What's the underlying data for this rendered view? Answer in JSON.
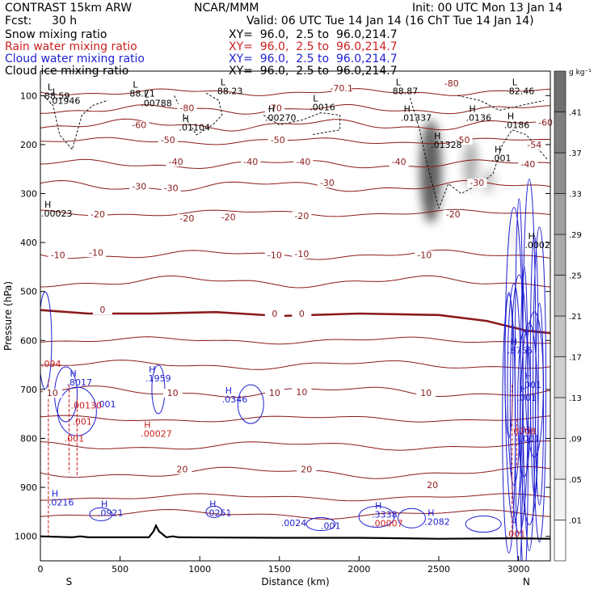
{
  "header": {
    "model": "CONTRAST 15km ARW",
    "center": "NCAR/MMM",
    "init": "Init: 00 UTC Mon 13 Jan 14",
    "fcst_label": "Fcst:",
    "fcst_value": "30 h",
    "valid": "Valid: 06 UTC Tue 14 Jan 14 (16 ChT Tue 14 Jan 14)",
    "fields": [
      {
        "name": "Snow mixing ratio",
        "xy": "XY=  96.0,  2.5 to  96.0,214.7",
        "color": "#000000"
      },
      {
        "name": "Rain water mixing ratio",
        "xy": "XY=  96.0,  2.5 to  96.0,214.7",
        "color": "#cc1f1f"
      },
      {
        "name": "Cloud water mixing ratio",
        "xy": "XY=  96.0,  2.5 to  96.0,214.7",
        "color": "#1f1fd0"
      },
      {
        "name": "Cloud ice mixing ratio",
        "xy": "XY=  96.0,  2.5 to  96.0,214.7",
        "color": "#000000"
      }
    ]
  },
  "colors": {
    "isotherm": "#8b1a1a",
    "rain": "#cc1f1f",
    "cloud_water": "#1f1fd0",
    "cloud_ice": "#000000",
    "terrain": "#000000"
  },
  "chart_data": {
    "type": "contour-cross-section",
    "xlabel": "Distance (km)",
    "ylabel": "Pressure (hPa)",
    "xlim": [
      0,
      3200
    ],
    "ylim": [
      1050,
      50
    ],
    "x_ticks": [
      0,
      500,
      1000,
      1500,
      2000,
      2500,
      3000
    ],
    "y_ticks": [
      100,
      200,
      300,
      400,
      500,
      600,
      700,
      800,
      900,
      1000
    ],
    "x_end_labels": {
      "left": "S",
      "right": "N"
    },
    "colorbar": {
      "unit": "g kg⁻¹",
      "levels": [
        ".01",
        ".05",
        ".09",
        ".13",
        ".17",
        ".21",
        ".25",
        ".29",
        ".33",
        ".37",
        ".41"
      ],
      "shades": [
        "#ffffff",
        "#f3f3f3",
        "#e7e7e7",
        "#dbdbdb",
        "#cfcfcf",
        "#c3c3c3",
        "#b7b7b7",
        "#ababab",
        "#9f9f9f",
        "#8f8f8f",
        "#7f7f7f",
        "#6f6f6f"
      ]
    },
    "temperature_contours": [
      {
        "label": "-70.1",
        "x": 1890,
        "p": 90
      },
      {
        "label": "-80",
        "x": 2580,
        "p": 80
      },
      {
        "label": "-80",
        "x": 920,
        "p": 130
      },
      {
        "label": "-70",
        "x": 1470,
        "p": 130
      },
      {
        "label": "-60",
        "x": 620,
        "p": 165
      },
      {
        "label": "-60",
        "x": 3170,
        "p": 160
      },
      {
        "label": "-50",
        "x": 800,
        "p": 195
      },
      {
        "label": "-50",
        "x": 1490,
        "p": 195
      },
      {
        "label": "-50",
        "x": 2650,
        "p": 195
      },
      {
        "label": "-54",
        "x": 3100,
        "p": 205
      },
      {
        "label": "-40",
        "x": 850,
        "p": 240
      },
      {
        "label": "-40",
        "x": 1320,
        "p": 240
      },
      {
        "label": "-40",
        "x": 1650,
        "p": 240
      },
      {
        "label": "-40",
        "x": 2250,
        "p": 240
      },
      {
        "label": "-40",
        "x": 3060,
        "p": 245
      },
      {
        "label": "-30",
        "x": 620,
        "p": 290
      },
      {
        "label": "-30",
        "x": 820,
        "p": 293
      },
      {
        "label": "-30",
        "x": 1800,
        "p": 283
      },
      {
        "label": "-30",
        "x": 2740,
        "p": 283
      },
      {
        "label": "-20",
        "x": 360,
        "p": 347
      },
      {
        "label": "-20",
        "x": 920,
        "p": 355
      },
      {
        "label": "-20",
        "x": 1180,
        "p": 353
      },
      {
        "label": "-20",
        "x": 1640,
        "p": 350
      },
      {
        "label": "-20",
        "x": 2590,
        "p": 347
      },
      {
        "label": "-10",
        "x": 110,
        "p": 430
      },
      {
        "label": "-10",
        "x": 350,
        "p": 425
      },
      {
        "label": "-10",
        "x": 1470,
        "p": 430
      },
      {
        "label": "-10",
        "x": 1640,
        "p": 428
      },
      {
        "label": "-10",
        "x": 2410,
        "p": 430
      },
      {
        "label": "0",
        "x": 390,
        "p": 542
      },
      {
        "label": "0",
        "x": 1470,
        "p": 550
      },
      {
        "label": "0",
        "x": 1640,
        "p": 550
      },
      {
        "label": "10",
        "x": 75,
        "p": 712
      },
      {
        "label": "10",
        "x": 830,
        "p": 712
      },
      {
        "label": "10",
        "x": 1470,
        "p": 712
      },
      {
        "label": "10",
        "x": 1640,
        "p": 710
      },
      {
        "label": "10",
        "x": 2420,
        "p": 712
      },
      {
        "label": "20",
        "x": 890,
        "p": 868
      },
      {
        "label": "20",
        "x": 1670,
        "p": 868
      },
      {
        "label": "20",
        "x": 2460,
        "p": 900
      }
    ],
    "extrema": [
      {
        "mark": "L",
        "label": "88.59",
        "x": 25,
        "p": 105,
        "field": "ice"
      },
      {
        "mark": "L",
        "label": ".01946",
        "x": 55,
        "p": 115,
        "field": "ice"
      },
      {
        "mark": "L",
        "label": "88.71",
        "x": 560,
        "p": 100,
        "field": "ice"
      },
      {
        "mark": "L",
        "label": ".00788",
        "x": 630,
        "p": 120,
        "field": "ice"
      },
      {
        "mark": "L",
        "label": "88.23",
        "x": 1110,
        "p": 95,
        "field": "ice"
      },
      {
        "mark": "L",
        "label": ".0016",
        "x": 1690,
        "p": 128,
        "field": "ice"
      },
      {
        "mark": "L",
        "label": "88.87",
        "x": 2210,
        "p": 95,
        "field": "ice"
      },
      {
        "mark": "L",
        "label": "82.46",
        "x": 2940,
        "p": 95,
        "field": "ice"
      },
      {
        "mark": "H",
        "label": ".01104",
        "x": 870,
        "p": 170,
        "field": "ice"
      },
      {
        "mark": "H",
        "label": ".00270",
        "x": 1410,
        "p": 150,
        "field": "ice"
      },
      {
        "mark": "H",
        "label": ".01337",
        "x": 2260,
        "p": 150,
        "field": "ice"
      },
      {
        "mark": "H",
        "label": ".0136",
        "x": 2670,
        "p": 150,
        "field": "ice"
      },
      {
        "mark": "H",
        "label": ".0186",
        "x": 2910,
        "p": 165,
        "field": "ice"
      },
      {
        "mark": "H",
        "label": ".01328",
        "x": 2450,
        "p": 205,
        "field": "ice"
      },
      {
        "mark": "H",
        "label": ".001",
        "x": 2830,
        "p": 232,
        "field": "ice"
      },
      {
        "mark": "H",
        "label": ".00023",
        "x": 5,
        "p": 345,
        "field": "ice"
      },
      {
        "mark": "H",
        "label": ".0002",
        "x": 3040,
        "p": 410,
        "field": "ice"
      },
      {
        "mark": "H",
        "label": ".8755",
        "x": 2930,
        "p": 625,
        "field": "water"
      },
      {
        "mark": "H",
        "label": ".001",
        "x": 3020,
        "p": 695,
        "field": "water"
      },
      {
        "mark": "H",
        "label": ".001",
        "x": 2990,
        "p": 722,
        "field": "water"
      },
      {
        "mark": "H",
        "label": ".001",
        "x": 3010,
        "p": 805,
        "field": "water"
      },
      {
        "mark": "",
        "label": ".094",
        "x": 5,
        "p": 652,
        "field": "rain"
      },
      {
        "mark": "H",
        "label": ".8017",
        "x": 165,
        "p": 690,
        "field": "water"
      },
      {
        "mark": "H",
        "label": ".1959",
        "x": 660,
        "p": 682,
        "field": "water"
      },
      {
        "mark": "H",
        "label": ".0346",
        "x": 1140,
        "p": 725,
        "field": "water"
      },
      {
        "mark": "",
        "label": ".001",
        "x": 350,
        "p": 735,
        "field": "water"
      },
      {
        "mark": "",
        "label": ".00130",
        "x": 190,
        "p": 737,
        "field": "rain"
      },
      {
        "mark": "",
        "label": ".001",
        "x": 200,
        "p": 770,
        "field": "rain"
      },
      {
        "mark": "",
        "label": ".001",
        "x": 150,
        "p": 805,
        "field": "rain"
      },
      {
        "mark": "H",
        "label": ".00027",
        "x": 630,
        "p": 795,
        "field": "rain"
      },
      {
        "mark": "",
        "label": ".0708",
        "x": 2950,
        "p": 790,
        "field": "rain"
      },
      {
        "mark": "H",
        "label": ".0216",
        "x": 50,
        "p": 935,
        "field": "water"
      },
      {
        "mark": "H",
        "label": ".0921",
        "x": 360,
        "p": 957,
        "field": "water"
      },
      {
        "mark": "H",
        "label": ".0251",
        "x": 1040,
        "p": 957,
        "field": "water"
      },
      {
        "mark": "",
        "label": ".0024",
        "x": 1510,
        "p": 977,
        "field": "water"
      },
      {
        "mark": "",
        "label": ".001",
        "x": 1760,
        "p": 983,
        "field": "water"
      },
      {
        "mark": "H",
        "label": ".3338",
        "x": 2080,
        "p": 960,
        "field": "water"
      },
      {
        "mark": "",
        "label": ".00007",
        "x": 2080,
        "p": 978,
        "field": "rain"
      },
      {
        "mark": "H",
        "label": ".2082",
        "x": 2410,
        "p": 975,
        "field": "water"
      },
      {
        "mark": "",
        "label": ".001",
        "x": 2920,
        "p": 1000,
        "field": "rain"
      }
    ],
    "freezing_level_p": [
      [
        0,
        538
      ],
      [
        300,
        545
      ],
      [
        700,
        545
      ],
      [
        1100,
        542
      ],
      [
        1500,
        550
      ],
      [
        2000,
        545
      ],
      [
        2500,
        548
      ],
      [
        2800,
        560
      ],
      [
        3050,
        580
      ],
      [
        3200,
        585
      ]
    ],
    "terrain_p": [
      [
        0,
        1000
      ],
      [
        200,
        1002
      ],
      [
        250,
        1000
      ],
      [
        300,
        1002
      ],
      [
        680,
        1002
      ],
      [
        710,
        990
      ],
      [
        725,
        978
      ],
      [
        745,
        990
      ],
      [
        790,
        1002
      ],
      [
        830,
        1000
      ],
      [
        870,
        1002
      ],
      [
        1500,
        1003
      ],
      [
        2000,
        1003
      ],
      [
        2500,
        1005
      ],
      [
        2950,
        1004
      ],
      [
        3200,
        1005
      ]
    ],
    "snow_bands": [
      {
        "x": 2450,
        "p_top": 150,
        "p_bottom": 360,
        "level": 0.41
      },
      {
        "x": 2700,
        "p_top": 190,
        "p_bottom": 290,
        "level": 0.2
      },
      {
        "x": 2810,
        "p_top": 250,
        "p_bottom": 300,
        "level": 0.15
      },
      {
        "x": 2970,
        "p_top": 360,
        "p_bottom": 420,
        "level": 0.05
      }
    ]
  }
}
